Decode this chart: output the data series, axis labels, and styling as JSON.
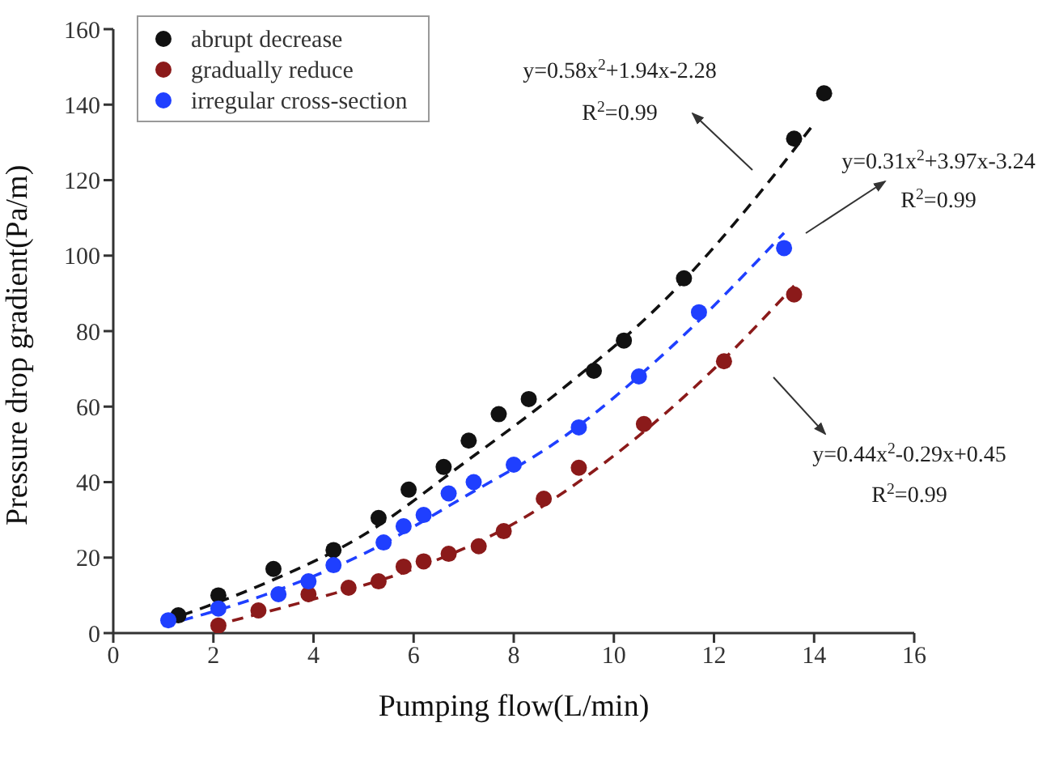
{
  "chart_data": {
    "type": "scatter",
    "xlabel": "Pumping flow(L/min)",
    "ylabel": "Pressure drop gradient(Pa/m)",
    "xlim": [
      0,
      16
    ],
    "xticks": [
      0,
      2,
      4,
      6,
      8,
      10,
      12,
      14,
      16
    ],
    "ylim": [
      0,
      160
    ],
    "yticks": [
      0,
      20,
      40,
      60,
      80,
      100,
      120,
      140,
      160
    ],
    "grid": false,
    "legend": "top left",
    "marker": "circle",
    "series": [
      {
        "name": "abrupt decrease",
        "color": "#111111",
        "x": [
          1.3,
          2.1,
          3.2,
          4.4,
          5.3,
          5.9,
          6.6,
          7.1,
          7.7,
          8.3,
          9.6,
          10.2,
          11.4,
          13.6,
          14.2
        ],
        "values": [
          4.7,
          10,
          17,
          22,
          30.5,
          38,
          44,
          51,
          58,
          62,
          69.5,
          77.5,
          94,
          131,
          143
        ]
      },
      {
        "name": "gradually reduce",
        "color": "#8b1a1a",
        "x": [
          2.1,
          2.9,
          3.9,
          4.7,
          5.3,
          5.8,
          6.2,
          6.7,
          7.3,
          7.8,
          8.6,
          9.3,
          10.6,
          12.2,
          13.6
        ],
        "values": [
          2,
          6,
          10.3,
          12,
          13.7,
          17.6,
          19,
          21,
          23,
          27,
          35.6,
          43.8,
          55.4,
          72,
          89.7
        ]
      },
      {
        "name": "irregular cross-section",
        "color": "#1f3fff",
        "x": [
          1.1,
          2.1,
          3.3,
          3.9,
          4.4,
          5.4,
          5.8,
          6.2,
          6.7,
          7.2,
          8.0,
          9.3,
          10.5,
          11.7,
          13.4
        ],
        "values": [
          3.4,
          6.5,
          10.3,
          13.7,
          18,
          24,
          28.3,
          31.3,
          37,
          40,
          44.6,
          54.5,
          68,
          85,
          102
        ]
      },
      {
        "type": "line",
        "line_style": "dashed",
        "marker": "none",
        "color": "#111111",
        "x": [
          1,
          3,
          5,
          7,
          9,
          11,
          13,
          14
        ],
        "values": [
          3,
          13,
          26,
          45,
          65,
          88,
          118,
          135
        ]
      },
      {
        "type": "line",
        "line_style": "dashed",
        "marker": "none",
        "color": "#8b1a1a",
        "x": [
          2,
          4,
          6,
          8,
          10,
          12,
          13.6
        ],
        "values": [
          2,
          9,
          17,
          29,
          47,
          70,
          92
        ]
      },
      {
        "type": "line",
        "line_style": "dashed",
        "marker": "none",
        "color": "#1f3fff",
        "x": [
          1,
          3,
          5,
          7,
          9,
          11,
          13.4
        ],
        "values": [
          2,
          10,
          21,
          36,
          52,
          74,
          106
        ]
      }
    ],
    "annotations": [
      "y=0.58x$^{2}$+1.94x-2.28",
      "R$^{2}$=0.99",
      "y=0.31x$^{2}$+3.97x-3.24",
      "R$^{2}$=0.99",
      "y=0.44x$^{2}$-0.29x+0.45",
      "R$^{2}$=0.99"
    ]
  }
}
